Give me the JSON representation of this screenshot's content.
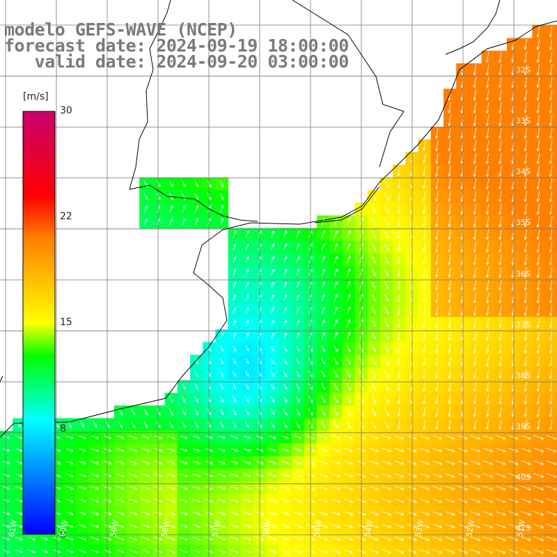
{
  "title": {
    "line1": "modelo GEFS-WAVE (NCEP)",
    "line2": "forecast date: 2024-09-19 18:00:00",
    "line3": "   valid date: 2024-09-20 03:00:00"
  },
  "colorbar": {
    "unit": "[m/s]",
    "ticks": [
      "30",
      "22",
      "15",
      "8",
      "0"
    ],
    "tick_values": [
      30,
      22,
      15,
      8,
      0
    ],
    "range": [
      0,
      30
    ],
    "stops": [
      "#0000ff",
      "#00ffff",
      "#00ff00",
      "#ffff00",
      "#ff7f00",
      "#ff0000",
      "#c8006e"
    ]
  },
  "axes": {
    "lat_labels": [
      "32S",
      "33S",
      "34S",
      "35S",
      "36S",
      "37S",
      "38S",
      "39S",
      "40S",
      "41S"
    ],
    "lon_labels": [
      "61W",
      "60W",
      "59W",
      "58W",
      "57W",
      "56W",
      "55W",
      "54W",
      "53W",
      "52W",
      "51W"
    ]
  },
  "colors": {
    "land": "#ffffff",
    "grid": "#777777",
    "coast": "#000000",
    "arrow": "#ffffff",
    "title": "#7a7a7a"
  }
}
